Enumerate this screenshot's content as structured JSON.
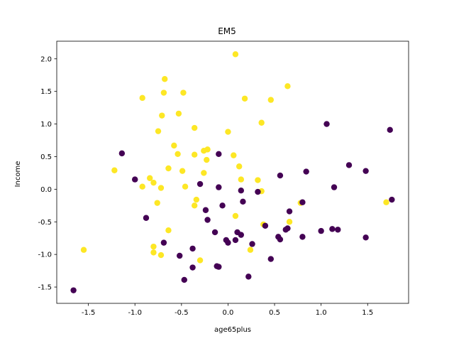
{
  "chart_data": {
    "type": "scatter",
    "title": "EM5",
    "xlabel": "age65plus",
    "ylabel": "Income",
    "xlim": [
      -1.84,
      1.94
    ],
    "ylim": [
      -1.75,
      2.27
    ],
    "x_ticks": [
      "-1.5",
      "-1.0",
      "-0.5",
      "0.0",
      "0.5",
      "1.0",
      "1.5"
    ],
    "x_tick_values": [
      -1.5,
      -1.0,
      -0.5,
      0.0,
      0.5,
      1.0,
      1.5
    ],
    "y_ticks": [
      "-1.5",
      "-1.0",
      "-0.5",
      "0.0",
      "0.5",
      "1.0",
      "1.5",
      "2.0"
    ],
    "y_tick_values": [
      -1.5,
      -1.0,
      -0.5,
      0.0,
      0.5,
      1.0,
      1.5,
      2.0
    ],
    "grid": false,
    "colors": {
      "cluster_0": "#440154",
      "cluster_1": "#fde725"
    },
    "series": [
      {
        "color": "#fde725",
        "points": [
          [
            0.08,
            2.07
          ],
          [
            -0.68,
            1.69
          ],
          [
            -0.92,
            1.4
          ],
          [
            -0.69,
            1.48
          ],
          [
            -0.48,
            1.48
          ],
          [
            0.18,
            1.39
          ],
          [
            0.46,
            1.37
          ],
          [
            0.64,
            1.58
          ],
          [
            -0.71,
            1.13
          ],
          [
            -0.53,
            1.16
          ],
          [
            -0.75,
            0.89
          ],
          [
            -0.36,
            0.94
          ],
          [
            0.0,
            0.88
          ],
          [
            0.36,
            1.02
          ],
          [
            -0.58,
            0.67
          ],
          [
            -0.54,
            0.54
          ],
          [
            -0.36,
            0.53
          ],
          [
            -0.26,
            0.59
          ],
          [
            -0.22,
            0.61
          ],
          [
            -0.23,
            0.45
          ],
          [
            0.06,
            0.52
          ],
          [
            0.12,
            0.35
          ],
          [
            -1.22,
            0.29
          ],
          [
            -0.64,
            0.32
          ],
          [
            -0.49,
            0.28
          ],
          [
            -0.26,
            0.25
          ],
          [
            -0.84,
            0.17
          ],
          [
            -0.8,
            0.1
          ],
          [
            0.14,
            0.15
          ],
          [
            0.32,
            0.14
          ],
          [
            -0.92,
            0.04
          ],
          [
            -0.46,
            0.04
          ],
          [
            -0.72,
            0.02
          ],
          [
            0.36,
            -0.03
          ],
          [
            -0.34,
            -0.16
          ],
          [
            -0.76,
            -0.21
          ],
          [
            -0.36,
            -0.25
          ],
          [
            0.78,
            -0.21
          ],
          [
            1.7,
            -0.2
          ],
          [
            0.08,
            -0.41
          ],
          [
            0.38,
            -0.54
          ],
          [
            0.66,
            -0.5
          ],
          [
            -0.64,
            -0.63
          ],
          [
            -0.8,
            -0.88
          ],
          [
            -0.8,
            -0.97
          ],
          [
            -0.72,
            -1.01
          ],
          [
            0.24,
            -0.93
          ],
          [
            -0.3,
            -1.09
          ],
          [
            -1.55,
            -0.93
          ]
        ]
      },
      {
        "color": "#440154",
        "points": [
          [
            -1.14,
            0.55
          ],
          [
            -1.0,
            0.15
          ],
          [
            -0.88,
            -0.44
          ],
          [
            -0.69,
            -0.82
          ],
          [
            -0.52,
            -1.02
          ],
          [
            -0.47,
            -1.39
          ],
          [
            -0.38,
            -1.2
          ],
          [
            -0.38,
            -0.91
          ],
          [
            -0.3,
            0.08
          ],
          [
            -0.24,
            -0.32
          ],
          [
            -0.22,
            -0.47
          ],
          [
            -0.14,
            -0.66
          ],
          [
            -0.12,
            -1.18
          ],
          [
            -0.1,
            -1.19
          ],
          [
            -0.1,
            0.03
          ],
          [
            -0.1,
            0.54
          ],
          [
            -0.06,
            -0.25
          ],
          [
            -0.02,
            -0.78
          ],
          [
            0.0,
            -0.82
          ],
          [
            0.08,
            -0.78
          ],
          [
            0.1,
            -0.66
          ],
          [
            0.14,
            -0.7
          ],
          [
            0.14,
            -0.02
          ],
          [
            0.16,
            -0.19
          ],
          [
            0.26,
            -0.84
          ],
          [
            0.22,
            -1.34
          ],
          [
            0.32,
            -0.04
          ],
          [
            0.4,
            -0.56
          ],
          [
            0.46,
            -1.07
          ],
          [
            0.54,
            -0.73
          ],
          [
            0.56,
            -0.77
          ],
          [
            0.56,
            0.21
          ],
          [
            0.62,
            -0.62
          ],
          [
            0.64,
            -0.6
          ],
          [
            0.66,
            -0.34
          ],
          [
            0.8,
            -0.2
          ],
          [
            0.8,
            -0.73
          ],
          [
            0.84,
            0.27
          ],
          [
            1.0,
            -0.64
          ],
          [
            1.06,
            1.0
          ],
          [
            1.12,
            -0.61
          ],
          [
            1.14,
            0.03
          ],
          [
            1.18,
            -0.62
          ],
          [
            1.3,
            0.37
          ],
          [
            1.48,
            0.28
          ],
          [
            1.48,
            -0.74
          ],
          [
            1.74,
            0.91
          ],
          [
            1.76,
            -0.16
          ],
          [
            -1.66,
            -1.55
          ]
        ]
      }
    ]
  }
}
